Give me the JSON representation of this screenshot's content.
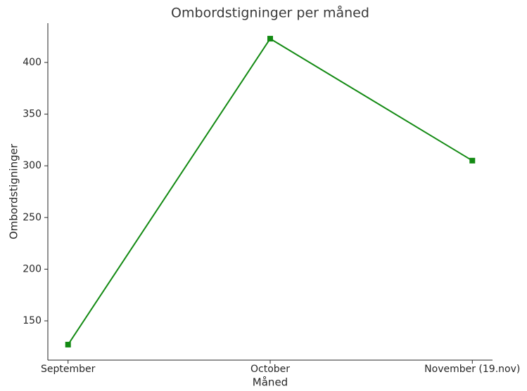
{
  "chart_data": {
    "type": "line",
    "title": "Ombordstigninger per måned",
    "x_label": "Måned",
    "y_label": "Ombordstigninger",
    "categories": [
      "September",
      "October",
      "November (19.nov)"
    ],
    "series": [
      {
        "name": "Ombordstigninger",
        "color": "#138a13",
        "values": [
          127,
          423,
          305
        ]
      }
    ],
    "ylim": [
      112,
      438
    ],
    "yticks": [
      150,
      200,
      250,
      300,
      350,
      400
    ],
    "grid": false
  }
}
